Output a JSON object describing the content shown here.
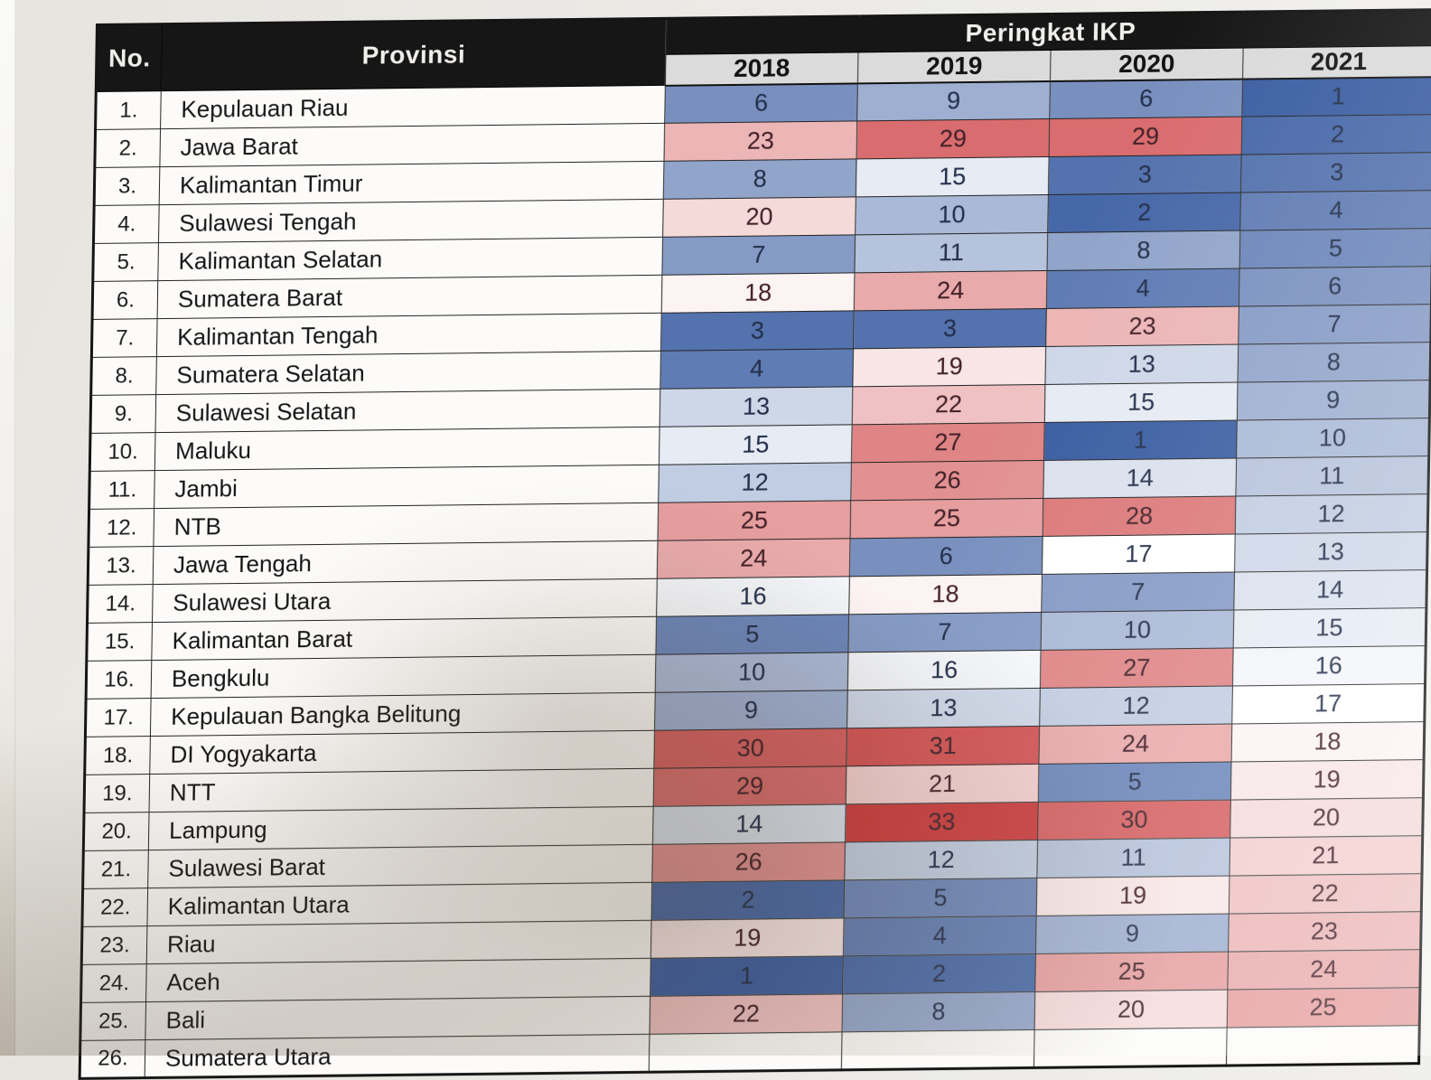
{
  "table": {
    "headers": {
      "no": "No.",
      "provinsi": "Provinsi",
      "group": "Peringkat IKP",
      "years": [
        "2018",
        "2019",
        "2020",
        "2021"
      ]
    },
    "rows": [
      {
        "no": "1.",
        "province": "Kepulauan Riau",
        "ranks": [
          6,
          9,
          6,
          1
        ]
      },
      {
        "no": "2.",
        "province": "Jawa Barat",
        "ranks": [
          23,
          29,
          29,
          2
        ]
      },
      {
        "no": "3.",
        "province": "Kalimantan Timur",
        "ranks": [
          8,
          15,
          3,
          3
        ]
      },
      {
        "no": "4.",
        "province": "Sulawesi Tengah",
        "ranks": [
          20,
          10,
          2,
          4
        ]
      },
      {
        "no": "5.",
        "province": "Kalimantan Selatan",
        "ranks": [
          7,
          11,
          8,
          5
        ]
      },
      {
        "no": "6.",
        "province": "Sumatera Barat",
        "ranks": [
          18,
          24,
          4,
          6
        ]
      },
      {
        "no": "7.",
        "province": "Kalimantan Tengah",
        "ranks": [
          3,
          3,
          23,
          7
        ]
      },
      {
        "no": "8.",
        "province": "Sumatera Selatan",
        "ranks": [
          4,
          19,
          13,
          8
        ]
      },
      {
        "no": "9.",
        "province": "Sulawesi Selatan",
        "ranks": [
          13,
          22,
          15,
          9
        ]
      },
      {
        "no": "10.",
        "province": "Maluku",
        "ranks": [
          15,
          27,
          1,
          10
        ]
      },
      {
        "no": "11.",
        "province": "Jambi",
        "ranks": [
          12,
          26,
          14,
          11
        ]
      },
      {
        "no": "12.",
        "province": "NTB",
        "ranks": [
          25,
          25,
          28,
          12
        ]
      },
      {
        "no": "13.",
        "province": "Jawa Tengah",
        "ranks": [
          24,
          6,
          17,
          13
        ]
      },
      {
        "no": "14.",
        "province": "Sulawesi Utara",
        "ranks": [
          16,
          18,
          7,
          14
        ]
      },
      {
        "no": "15.",
        "province": "Kalimantan Barat",
        "ranks": [
          5,
          7,
          10,
          15
        ]
      },
      {
        "no": "16.",
        "province": "Bengkulu",
        "ranks": [
          10,
          16,
          27,
          16
        ]
      },
      {
        "no": "17.",
        "province": "Kepulauan Bangka Belitung",
        "ranks": [
          9,
          13,
          12,
          17
        ]
      },
      {
        "no": "18.",
        "province": "DI Yogyakarta",
        "ranks": [
          30,
          31,
          24,
          18
        ]
      },
      {
        "no": "19.",
        "province": "NTT",
        "ranks": [
          29,
          21,
          5,
          19
        ]
      },
      {
        "no": "20.",
        "province": "Lampung",
        "ranks": [
          14,
          33,
          30,
          20
        ]
      },
      {
        "no": "21.",
        "province": "Sulawesi Barat",
        "ranks": [
          26,
          12,
          11,
          21
        ]
      },
      {
        "no": "22.",
        "province": "Kalimantan Utara",
        "ranks": [
          2,
          5,
          19,
          22
        ]
      },
      {
        "no": "23.",
        "province": "Riau",
        "ranks": [
          19,
          4,
          9,
          23
        ]
      },
      {
        "no": "24.",
        "province": "Aceh",
        "ranks": [
          1,
          2,
          25,
          24
        ]
      },
      {
        "no": "25.",
        "province": "Bali",
        "ranks": [
          22,
          8,
          20,
          25
        ]
      },
      {
        "no": "26.",
        "province": "Sumatera Utara",
        "ranks": [
          null,
          null,
          null,
          null
        ]
      }
    ],
    "color_scale": {
      "min_value": 1,
      "mid_value": 17,
      "max_value": 33,
      "min_color": "#3A5EA5",
      "mid_color": "#FFFFFF",
      "max_color": "#D13A3C",
      "text_low": "#24304E",
      "text_high": "#46222A",
      "header_bg": "#171616",
      "header_text": "#F1EFEC",
      "year_header_bg": "#DBDBDB"
    }
  }
}
